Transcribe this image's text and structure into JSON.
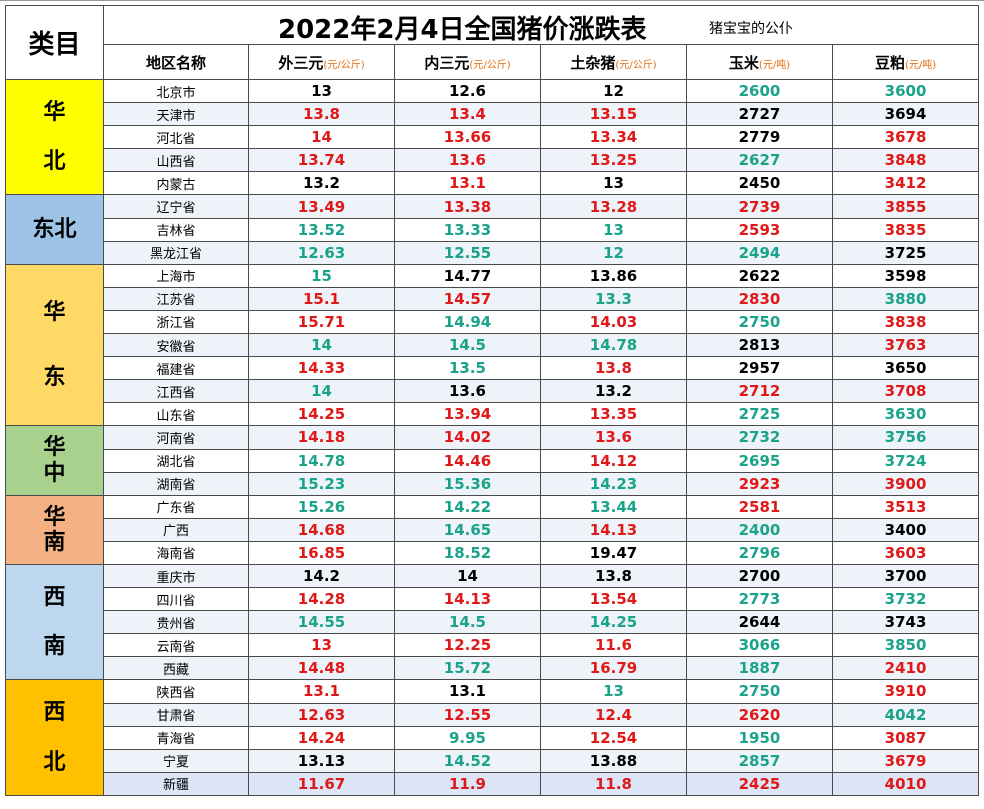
{
  "title": "2022年2月4日全国猪价涨跌表",
  "subtitle": "猪宝宝的公仆",
  "category_header": "类目",
  "columns": [
    {
      "name": "地区名称",
      "unit": ""
    },
    {
      "name": "外三元",
      "unit": "(元/公斤)"
    },
    {
      "name": "内三元",
      "unit": "(元/公斤)"
    },
    {
      "name": "土杂猪",
      "unit": "(元/公斤)"
    },
    {
      "name": "玉米",
      "unit": "(元/吨)"
    },
    {
      "name": "豆粕",
      "unit": "(元/吨)"
    }
  ],
  "colors": {
    "up": "#e01818",
    "down": "#1aa38a",
    "flat": "#000000"
  },
  "groups": [
    {
      "name": "华北",
      "chars": [
        "华",
        "北"
      ],
      "color": "#ffff00",
      "rows": 5
    },
    {
      "name": "东北",
      "chars": [
        "东北"
      ],
      "color": "#9dc3e6",
      "rows": 3
    },
    {
      "name": "华东",
      "chars": [
        "华",
        "东"
      ],
      "color": "#ffd966",
      "rows": 7
    },
    {
      "name": "华中",
      "chars": [
        "华",
        "中"
      ],
      "color": "#a9d18e",
      "rows": 3
    },
    {
      "name": "华南",
      "chars": [
        "华",
        "南"
      ],
      "color": "#f4b183",
      "rows": 3
    },
    {
      "name": "西南",
      "chars": [
        "西",
        "南"
      ],
      "color": "#bdd7ee",
      "rows": 5
    },
    {
      "name": "西北",
      "chars": [
        "西",
        "北"
      ],
      "color": "#ffc000",
      "rows": 5
    }
  ],
  "rows": [
    {
      "region": "北京市",
      "values": [
        [
          "13",
          "flat"
        ],
        [
          "12.6",
          "flat"
        ],
        [
          "12",
          "flat"
        ],
        [
          "2600",
          "down"
        ],
        [
          "3600",
          "down"
        ]
      ]
    },
    {
      "region": "天津市",
      "values": [
        [
          "13.8",
          "up"
        ],
        [
          "13.4",
          "up"
        ],
        [
          "13.15",
          "up"
        ],
        [
          "2727",
          "flat"
        ],
        [
          "3694",
          "flat"
        ]
      ]
    },
    {
      "region": "河北省",
      "values": [
        [
          "14",
          "up"
        ],
        [
          "13.66",
          "up"
        ],
        [
          "13.34",
          "up"
        ],
        [
          "2779",
          "flat"
        ],
        [
          "3678",
          "up"
        ]
      ]
    },
    {
      "region": "山西省",
      "values": [
        [
          "13.74",
          "up"
        ],
        [
          "13.6",
          "up"
        ],
        [
          "13.25",
          "up"
        ],
        [
          "2627",
          "down"
        ],
        [
          "3848",
          "up"
        ]
      ]
    },
    {
      "region": "内蒙古",
      "values": [
        [
          "13.2",
          "flat"
        ],
        [
          "13.1",
          "up"
        ],
        [
          "13",
          "flat"
        ],
        [
          "2450",
          "flat"
        ],
        [
          "3412",
          "up"
        ]
      ]
    },
    {
      "region": "辽宁省",
      "values": [
        [
          "13.49",
          "up"
        ],
        [
          "13.38",
          "up"
        ],
        [
          "13.28",
          "up"
        ],
        [
          "2739",
          "up"
        ],
        [
          "3855",
          "up"
        ]
      ]
    },
    {
      "region": "吉林省",
      "values": [
        [
          "13.52",
          "down"
        ],
        [
          "13.33",
          "down"
        ],
        [
          "13",
          "down"
        ],
        [
          "2593",
          "up"
        ],
        [
          "3835",
          "up"
        ]
      ]
    },
    {
      "region": "黑龙江省",
      "values": [
        [
          "12.63",
          "down"
        ],
        [
          "12.55",
          "down"
        ],
        [
          "12",
          "down"
        ],
        [
          "2494",
          "down"
        ],
        [
          "3725",
          "flat"
        ]
      ]
    },
    {
      "region": "上海市",
      "values": [
        [
          "15",
          "down"
        ],
        [
          "14.77",
          "flat"
        ],
        [
          "13.86",
          "flat"
        ],
        [
          "2622",
          "flat"
        ],
        [
          "3598",
          "flat"
        ]
      ]
    },
    {
      "region": "江苏省",
      "values": [
        [
          "15.1",
          "up"
        ],
        [
          "14.57",
          "up"
        ],
        [
          "13.3",
          "down"
        ],
        [
          "2830",
          "up"
        ],
        [
          "3880",
          "down"
        ]
      ]
    },
    {
      "region": "浙江省",
      "values": [
        [
          "15.71",
          "up"
        ],
        [
          "14.94",
          "down"
        ],
        [
          "14.03",
          "up"
        ],
        [
          "2750",
          "down"
        ],
        [
          "3838",
          "up"
        ]
      ]
    },
    {
      "region": "安徽省",
      "values": [
        [
          "14",
          "down"
        ],
        [
          "14.5",
          "down"
        ],
        [
          "14.78",
          "down"
        ],
        [
          "2813",
          "flat"
        ],
        [
          "3763",
          "up"
        ]
      ]
    },
    {
      "region": "福建省",
      "values": [
        [
          "14.33",
          "up"
        ],
        [
          "13.5",
          "down"
        ],
        [
          "13.8",
          "up"
        ],
        [
          "2957",
          "flat"
        ],
        [
          "3650",
          "flat"
        ]
      ]
    },
    {
      "region": "江西省",
      "values": [
        [
          "14",
          "down"
        ],
        [
          "13.6",
          "flat"
        ],
        [
          "13.2",
          "flat"
        ],
        [
          "2712",
          "up"
        ],
        [
          "3708",
          "up"
        ]
      ]
    },
    {
      "region": "山东省",
      "values": [
        [
          "14.25",
          "up"
        ],
        [
          "13.94",
          "up"
        ],
        [
          "13.35",
          "up"
        ],
        [
          "2725",
          "down"
        ],
        [
          "3630",
          "down"
        ]
      ]
    },
    {
      "region": "河南省",
      "values": [
        [
          "14.18",
          "up"
        ],
        [
          "14.02",
          "up"
        ],
        [
          "13.6",
          "up"
        ],
        [
          "2732",
          "down"
        ],
        [
          "3756",
          "down"
        ]
      ]
    },
    {
      "region": "湖北省",
      "values": [
        [
          "14.78",
          "down"
        ],
        [
          "14.46",
          "up"
        ],
        [
          "14.12",
          "up"
        ],
        [
          "2695",
          "down"
        ],
        [
          "3724",
          "down"
        ]
      ]
    },
    {
      "region": "湖南省",
      "values": [
        [
          "15.23",
          "down"
        ],
        [
          "15.36",
          "down"
        ],
        [
          "14.23",
          "down"
        ],
        [
          "2923",
          "up"
        ],
        [
          "3900",
          "up"
        ]
      ]
    },
    {
      "region": "广东省",
      "values": [
        [
          "15.26",
          "down"
        ],
        [
          "14.22",
          "down"
        ],
        [
          "13.44",
          "down"
        ],
        [
          "2581",
          "up"
        ],
        [
          "3513",
          "up"
        ]
      ]
    },
    {
      "region": "广西",
      "values": [
        [
          "14.68",
          "up"
        ],
        [
          "14.65",
          "down"
        ],
        [
          "14.13",
          "up"
        ],
        [
          "2400",
          "down"
        ],
        [
          "3400",
          "flat"
        ]
      ]
    },
    {
      "region": "海南省",
      "values": [
        [
          "16.85",
          "up"
        ],
        [
          "18.52",
          "down"
        ],
        [
          "19.47",
          "flat"
        ],
        [
          "2796",
          "down"
        ],
        [
          "3603",
          "up"
        ]
      ]
    },
    {
      "region": "重庆市",
      "values": [
        [
          "14.2",
          "flat"
        ],
        [
          "14",
          "flat"
        ],
        [
          "13.8",
          "flat"
        ],
        [
          "2700",
          "flat"
        ],
        [
          "3700",
          "flat"
        ]
      ]
    },
    {
      "region": "四川省",
      "values": [
        [
          "14.28",
          "up"
        ],
        [
          "14.13",
          "up"
        ],
        [
          "13.54",
          "up"
        ],
        [
          "2773",
          "down"
        ],
        [
          "3732",
          "down"
        ]
      ]
    },
    {
      "region": "贵州省",
      "values": [
        [
          "14.55",
          "down"
        ],
        [
          "14.5",
          "down"
        ],
        [
          "14.25",
          "down"
        ],
        [
          "2644",
          "flat"
        ],
        [
          "3743",
          "flat"
        ]
      ]
    },
    {
      "region": "云南省",
      "values": [
        [
          "13",
          "up"
        ],
        [
          "12.25",
          "up"
        ],
        [
          "11.6",
          "up"
        ],
        [
          "3066",
          "down"
        ],
        [
          "3850",
          "down"
        ]
      ]
    },
    {
      "region": "西藏",
      "values": [
        [
          "14.48",
          "up"
        ],
        [
          "15.72",
          "down"
        ],
        [
          "16.79",
          "up"
        ],
        [
          "1887",
          "down"
        ],
        [
          "2410",
          "up"
        ]
      ]
    },
    {
      "region": "陕西省",
      "values": [
        [
          "13.1",
          "up"
        ],
        [
          "13.1",
          "flat"
        ],
        [
          "13",
          "down"
        ],
        [
          "2750",
          "down"
        ],
        [
          "3910",
          "up"
        ]
      ]
    },
    {
      "region": "甘肃省",
      "values": [
        [
          "12.63",
          "up"
        ],
        [
          "12.55",
          "up"
        ],
        [
          "12.4",
          "up"
        ],
        [
          "2620",
          "up"
        ],
        [
          "4042",
          "down"
        ]
      ]
    },
    {
      "region": "青海省",
      "values": [
        [
          "14.24",
          "up"
        ],
        [
          "9.95",
          "down"
        ],
        [
          "12.54",
          "up"
        ],
        [
          "1950",
          "down"
        ],
        [
          "3087",
          "up"
        ]
      ]
    },
    {
      "region": "宁夏",
      "values": [
        [
          "13.13",
          "flat"
        ],
        [
          "14.52",
          "down"
        ],
        [
          "13.88",
          "flat"
        ],
        [
          "2857",
          "down"
        ],
        [
          "3679",
          "up"
        ]
      ]
    },
    {
      "region": "新疆",
      "values": [
        [
          "11.67",
          "up"
        ],
        [
          "11.9",
          "up"
        ],
        [
          "11.8",
          "up"
        ],
        [
          "2425",
          "up"
        ],
        [
          "4010",
          "up"
        ]
      ]
    }
  ]
}
